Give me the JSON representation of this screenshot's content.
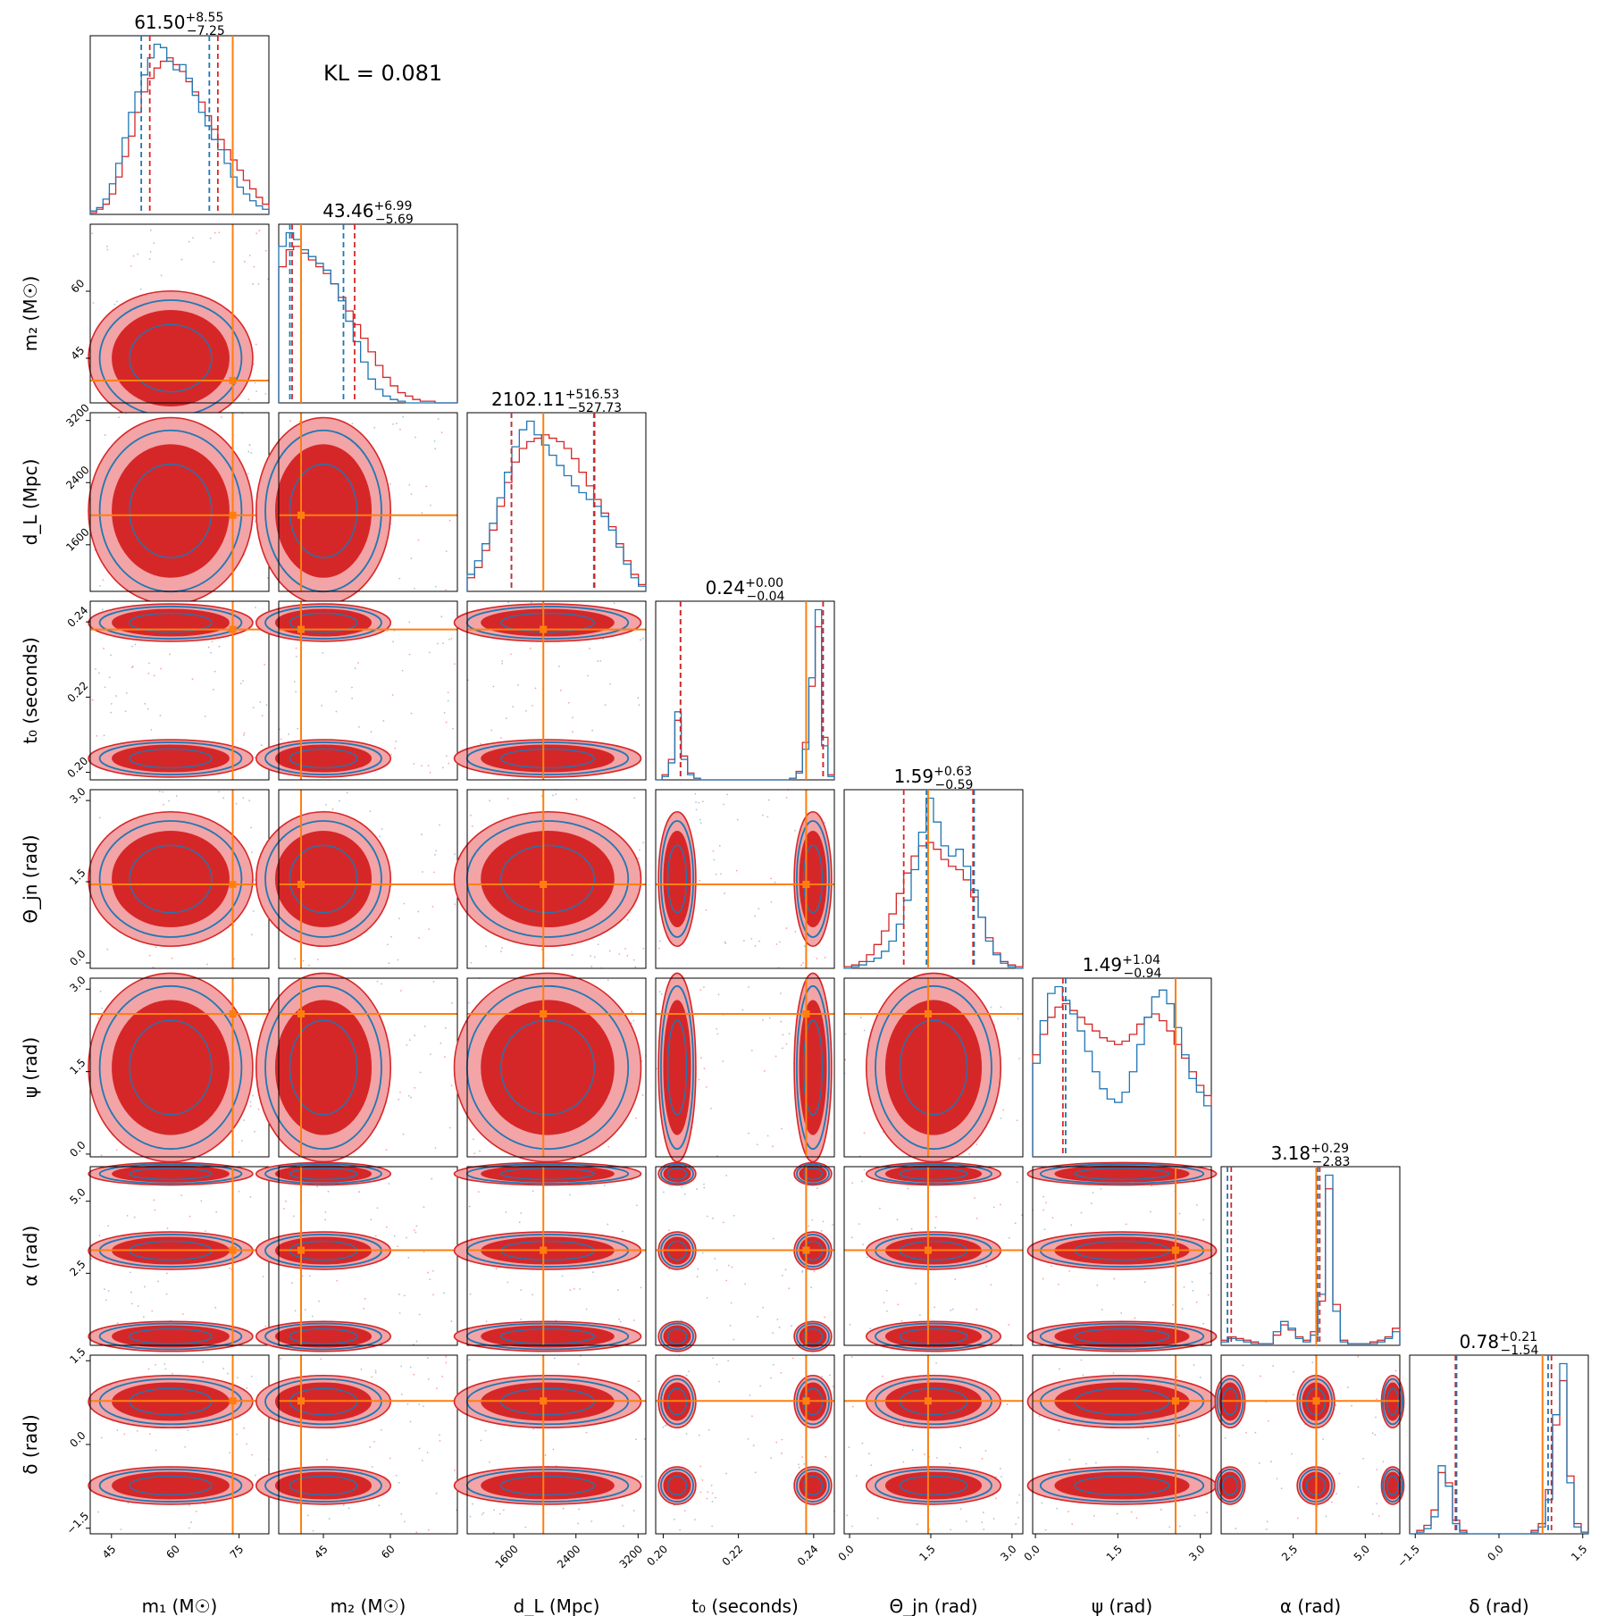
{
  "annotation": "KL = 0.081",
  "colors": {
    "blue": "#1f77b4",
    "red": "#d62728",
    "orange": "#ff7f0e"
  },
  "chart_data": {
    "type": "scatter",
    "params": [
      {
        "key": "m1",
        "label": "m₁ (M☉)",
        "range": [
          40,
          82
        ],
        "ticks": [
          45,
          60,
          75
        ],
        "truth": 73.5,
        "title": {
          "median": "61.50",
          "plus": "+8.55",
          "minus": "−7.25"
        },
        "q_blue": [
          52,
          68
        ],
        "q_red": [
          54,
          70
        ],
        "hist_blue": [
          2,
          4,
          9,
          18,
          30,
          45,
          60,
          72,
          82,
          92,
          100,
          98,
          90,
          85,
          88,
          80,
          70,
          60,
          52,
          44,
          38,
          30,
          22,
          16,
          12,
          8,
          5,
          3
        ],
        "hist_red": [
          1,
          3,
          6,
          12,
          22,
          34,
          46,
          60,
          72,
          80,
          86,
          90,
          92,
          88,
          84,
          78,
          72,
          66,
          58,
          50,
          44,
          38,
          32,
          26,
          20,
          15,
          10,
          6
        ]
      },
      {
        "key": "m2",
        "label": "m₂ (M☉)",
        "range": [
          35,
          75
        ],
        "ticks": [
          45,
          60
        ],
        "truth": 40,
        "title": {
          "median": "43.46",
          "plus": "+6.99",
          "minus": "−5.69"
        },
        "q_blue": [
          37.5,
          49.5
        ],
        "q_red": [
          38,
          52
        ],
        "hist_blue": [
          92,
          100,
          96,
          90,
          86,
          82,
          78,
          70,
          60,
          48,
          36,
          24,
          14,
          8,
          4,
          2,
          1,
          0,
          0,
          0,
          0,
          0,
          0,
          0
        ],
        "hist_red": [
          80,
          90,
          92,
          88,
          84,
          80,
          76,
          70,
          62,
          54,
          46,
          38,
          30,
          22,
          15,
          10,
          6,
          4,
          2,
          1,
          1,
          0,
          0,
          0
        ]
      },
      {
        "key": "dL",
        "label": "d_L (Mpc)",
        "range": [
          1000,
          3300
        ],
        "ticks": [
          1600,
          2400,
          3200
        ],
        "truth": 1980,
        "title": {
          "median": "2102.11",
          "plus": "+516.53",
          "minus": "−527.73"
        },
        "q_blue": [
          1570,
          2630
        ],
        "q_red": [
          1570,
          2640
        ],
        "hist_blue": [
          10,
          18,
          28,
          40,
          55,
          70,
          85,
          95,
          100,
          92,
          86,
          80,
          74,
          68,
          62,
          58,
          54,
          50,
          44,
          36,
          26,
          16,
          8,
          3
        ],
        "hist_red": [
          8,
          14,
          24,
          36,
          50,
          64,
          76,
          84,
          88,
          90,
          92,
          90,
          88,
          84,
          78,
          70,
          62,
          54,
          46,
          38,
          28,
          18,
          10,
          4
        ]
      },
      {
        "key": "t0",
        "label": "t₀ (seconds)",
        "range": [
          0.198,
          0.2455
        ],
        "ticks": [
          0.2,
          0.22,
          0.24
        ],
        "truth": 0.238,
        "title": {
          "median": "0.24",
          "plus": "+0.00",
          "minus": "−0.04"
        },
        "q_blue": [
          0.2046,
          0.2425
        ],
        "q_red": [
          0.2046,
          0.2425
        ],
        "hist_blue": [
          0,
          2,
          10,
          40,
          12,
          3,
          1,
          0,
          0,
          0,
          0,
          0,
          0,
          0,
          0,
          0,
          0,
          0,
          0,
          0,
          0,
          1,
          4,
          18,
          60,
          100,
          20,
          2
        ],
        "hist_red": [
          0,
          3,
          12,
          35,
          14,
          4,
          1,
          0,
          0,
          0,
          0,
          0,
          0,
          0,
          0,
          0,
          0,
          0,
          0,
          0,
          0,
          1,
          5,
          22,
          55,
          90,
          25,
          3
        ]
      },
      {
        "key": "theta",
        "label": "Θ_jn (rad)",
        "range": [
          -0.1,
          3.2
        ],
        "ticks": [
          0.0,
          1.5,
          3.0
        ],
        "truth": 1.45,
        "title": {
          "median": "1.59",
          "plus": "+0.63",
          "minus": "−0.59"
        },
        "q_blue": [
          1.42,
          2.3
        ],
        "q_red": [
          1.0,
          2.28
        ],
        "hist_blue": [
          0,
          1,
          2,
          4,
          6,
          10,
          16,
          26,
          40,
          58,
          80,
          100,
          86,
          72,
          66,
          70,
          60,
          46,
          30,
          16,
          8,
          3,
          1,
          0
        ],
        "hist_red": [
          1,
          2,
          4,
          8,
          14,
          22,
          32,
          44,
          56,
          66,
          72,
          74,
          70,
          64,
          60,
          58,
          52,
          42,
          30,
          18,
          9,
          4,
          2,
          1
        ]
      },
      {
        "key": "psi",
        "label": "ψ (rad)",
        "range": [
          -0.05,
          3.2
        ],
        "ticks": [
          0.0,
          1.5,
          3.0
        ],
        "truth": 2.55,
        "title": {
          "median": "1.49",
          "plus": "+1.04",
          "minus": "−0.94"
        },
        "q_blue": [
          0.55,
          2.55
        ],
        "q_red": [
          0.5,
          2.55
        ],
        "hist_blue": [
          55,
          80,
          96,
          100,
          92,
          84,
          74,
          62,
          50,
          40,
          34,
          32,
          38,
          50,
          66,
          82,
          94,
          98,
          90,
          76,
          60,
          46,
          38,
          30
        ],
        "hist_red": [
          60,
          72,
          82,
          88,
          90,
          86,
          82,
          78,
          74,
          70,
          68,
          66,
          68,
          72,
          78,
          82,
          84,
          80,
          74,
          66,
          58,
          50,
          42,
          36
        ]
      },
      {
        "key": "alpha",
        "label": "α (rad)",
        "range": [
          0,
          6.2
        ],
        "ticks": [
          2.5,
          5.0
        ],
        "truth": 3.3,
        "title": {
          "median": "3.18",
          "plus": "+0.29",
          "minus": "−2.83"
        },
        "q_blue": [
          0.22,
          3.35
        ],
        "q_red": [
          0.35,
          3.42
        ],
        "hist_blue": [
          2,
          4,
          3,
          2,
          1,
          1,
          1,
          8,
          14,
          10,
          4,
          2,
          6,
          30,
          100,
          20,
          2,
          1,
          1,
          1,
          1,
          2,
          4,
          8
        ],
        "hist_red": [
          3,
          5,
          4,
          3,
          2,
          1,
          1,
          6,
          12,
          9,
          5,
          3,
          8,
          26,
          92,
          24,
          3,
          1,
          1,
          1,
          2,
          3,
          5,
          10
        ]
      },
      {
        "key": "delta",
        "label": "δ (rad)",
        "range": [
          -1.6,
          1.6
        ],
        "ticks": [
          -1.5,
          0.0,
          1.5
        ],
        "truth": 0.78,
        "title": {
          "median": "0.78",
          "plus": "+0.21",
          "minus": "−1.54"
        },
        "q_blue": [
          -0.76,
          0.88
        ],
        "q_red": [
          -0.78,
          0.94
        ],
        "hist_blue": [
          0,
          1,
          3,
          10,
          40,
          28,
          6,
          1,
          0,
          0,
          0,
          0,
          0,
          0,
          0,
          0,
          0,
          1,
          4,
          20,
          70,
          100,
          30,
          4,
          1
        ],
        "hist_red": [
          0,
          2,
          5,
          14,
          36,
          30,
          8,
          2,
          0,
          0,
          0,
          0,
          0,
          0,
          0,
          0,
          0,
          2,
          6,
          26,
          64,
          90,
          34,
          6,
          1
        ]
      }
    ]
  }
}
